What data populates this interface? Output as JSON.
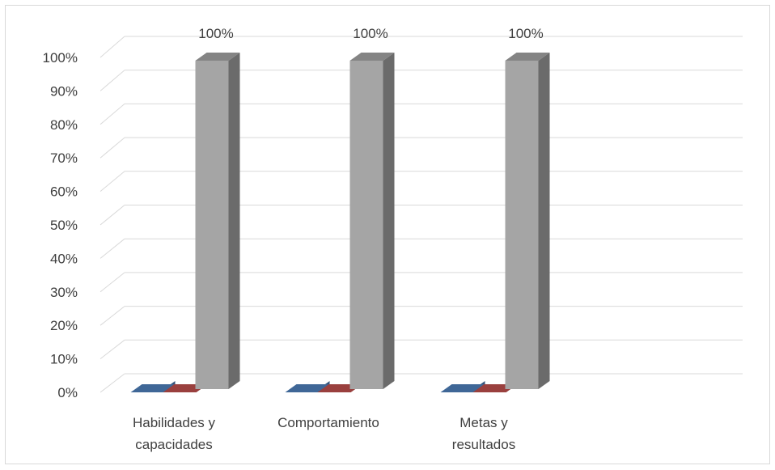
{
  "chart_data": {
    "type": "bar",
    "style": "3d-clustered-column",
    "categories": [
      [
        "Habilidades y",
        "capacidades"
      ],
      [
        "Comportamiento"
      ],
      [
        "Metas y",
        "resultados"
      ]
    ],
    "series": [
      {
        "values": [
          0,
          0,
          0
        ],
        "color": "#4f81bd"
      },
      {
        "values": [
          0,
          0,
          0
        ],
        "color": "#c0504d"
      },
      {
        "values": [
          1,
          1,
          1
        ],
        "color": "#a5a5a5"
      }
    ],
    "data_labels": [
      "100%",
      "100%",
      "100%"
    ],
    "ylim": [
      0,
      1
    ],
    "yticks": [
      "0%",
      "10%",
      "20%",
      "30%",
      "40%",
      "50%",
      "60%",
      "70%",
      "80%",
      "90%",
      "100%"
    ],
    "grid": true,
    "legend": "none"
  }
}
